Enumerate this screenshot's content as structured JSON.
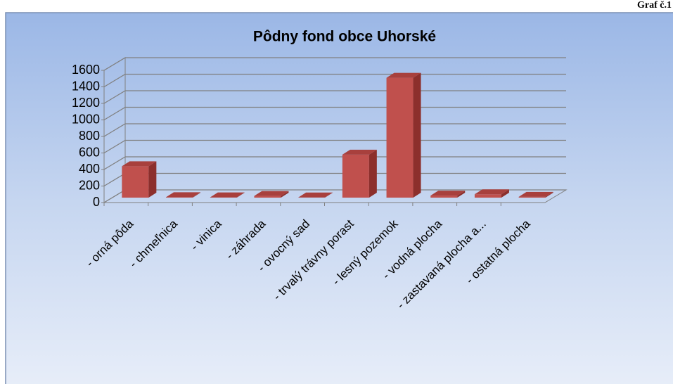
{
  "corner_label": "Graf č.1",
  "chart_data": {
    "type": "bar3d",
    "title": "Pôdny fond obce Uhorské",
    "categories": [
      "- orná pôda",
      "- chmeľnica",
      "- vinica",
      "- záhrada",
      "- ovocný sad",
      "- trvalý trávny porast",
      "- lesný pozemok",
      "- vodná plocha",
      "- zastavaná plocha a...",
      "- ostatná plocha"
    ],
    "values": [
      380,
      5,
      3,
      20,
      2,
      520,
      1450,
      25,
      40,
      10
    ],
    "color": "#c0504d",
    "ylim": [
      0,
      1600
    ],
    "yticks": [
      0,
      200,
      400,
      600,
      800,
      1000,
      1200,
      1400,
      1600
    ],
    "grid": true
  }
}
